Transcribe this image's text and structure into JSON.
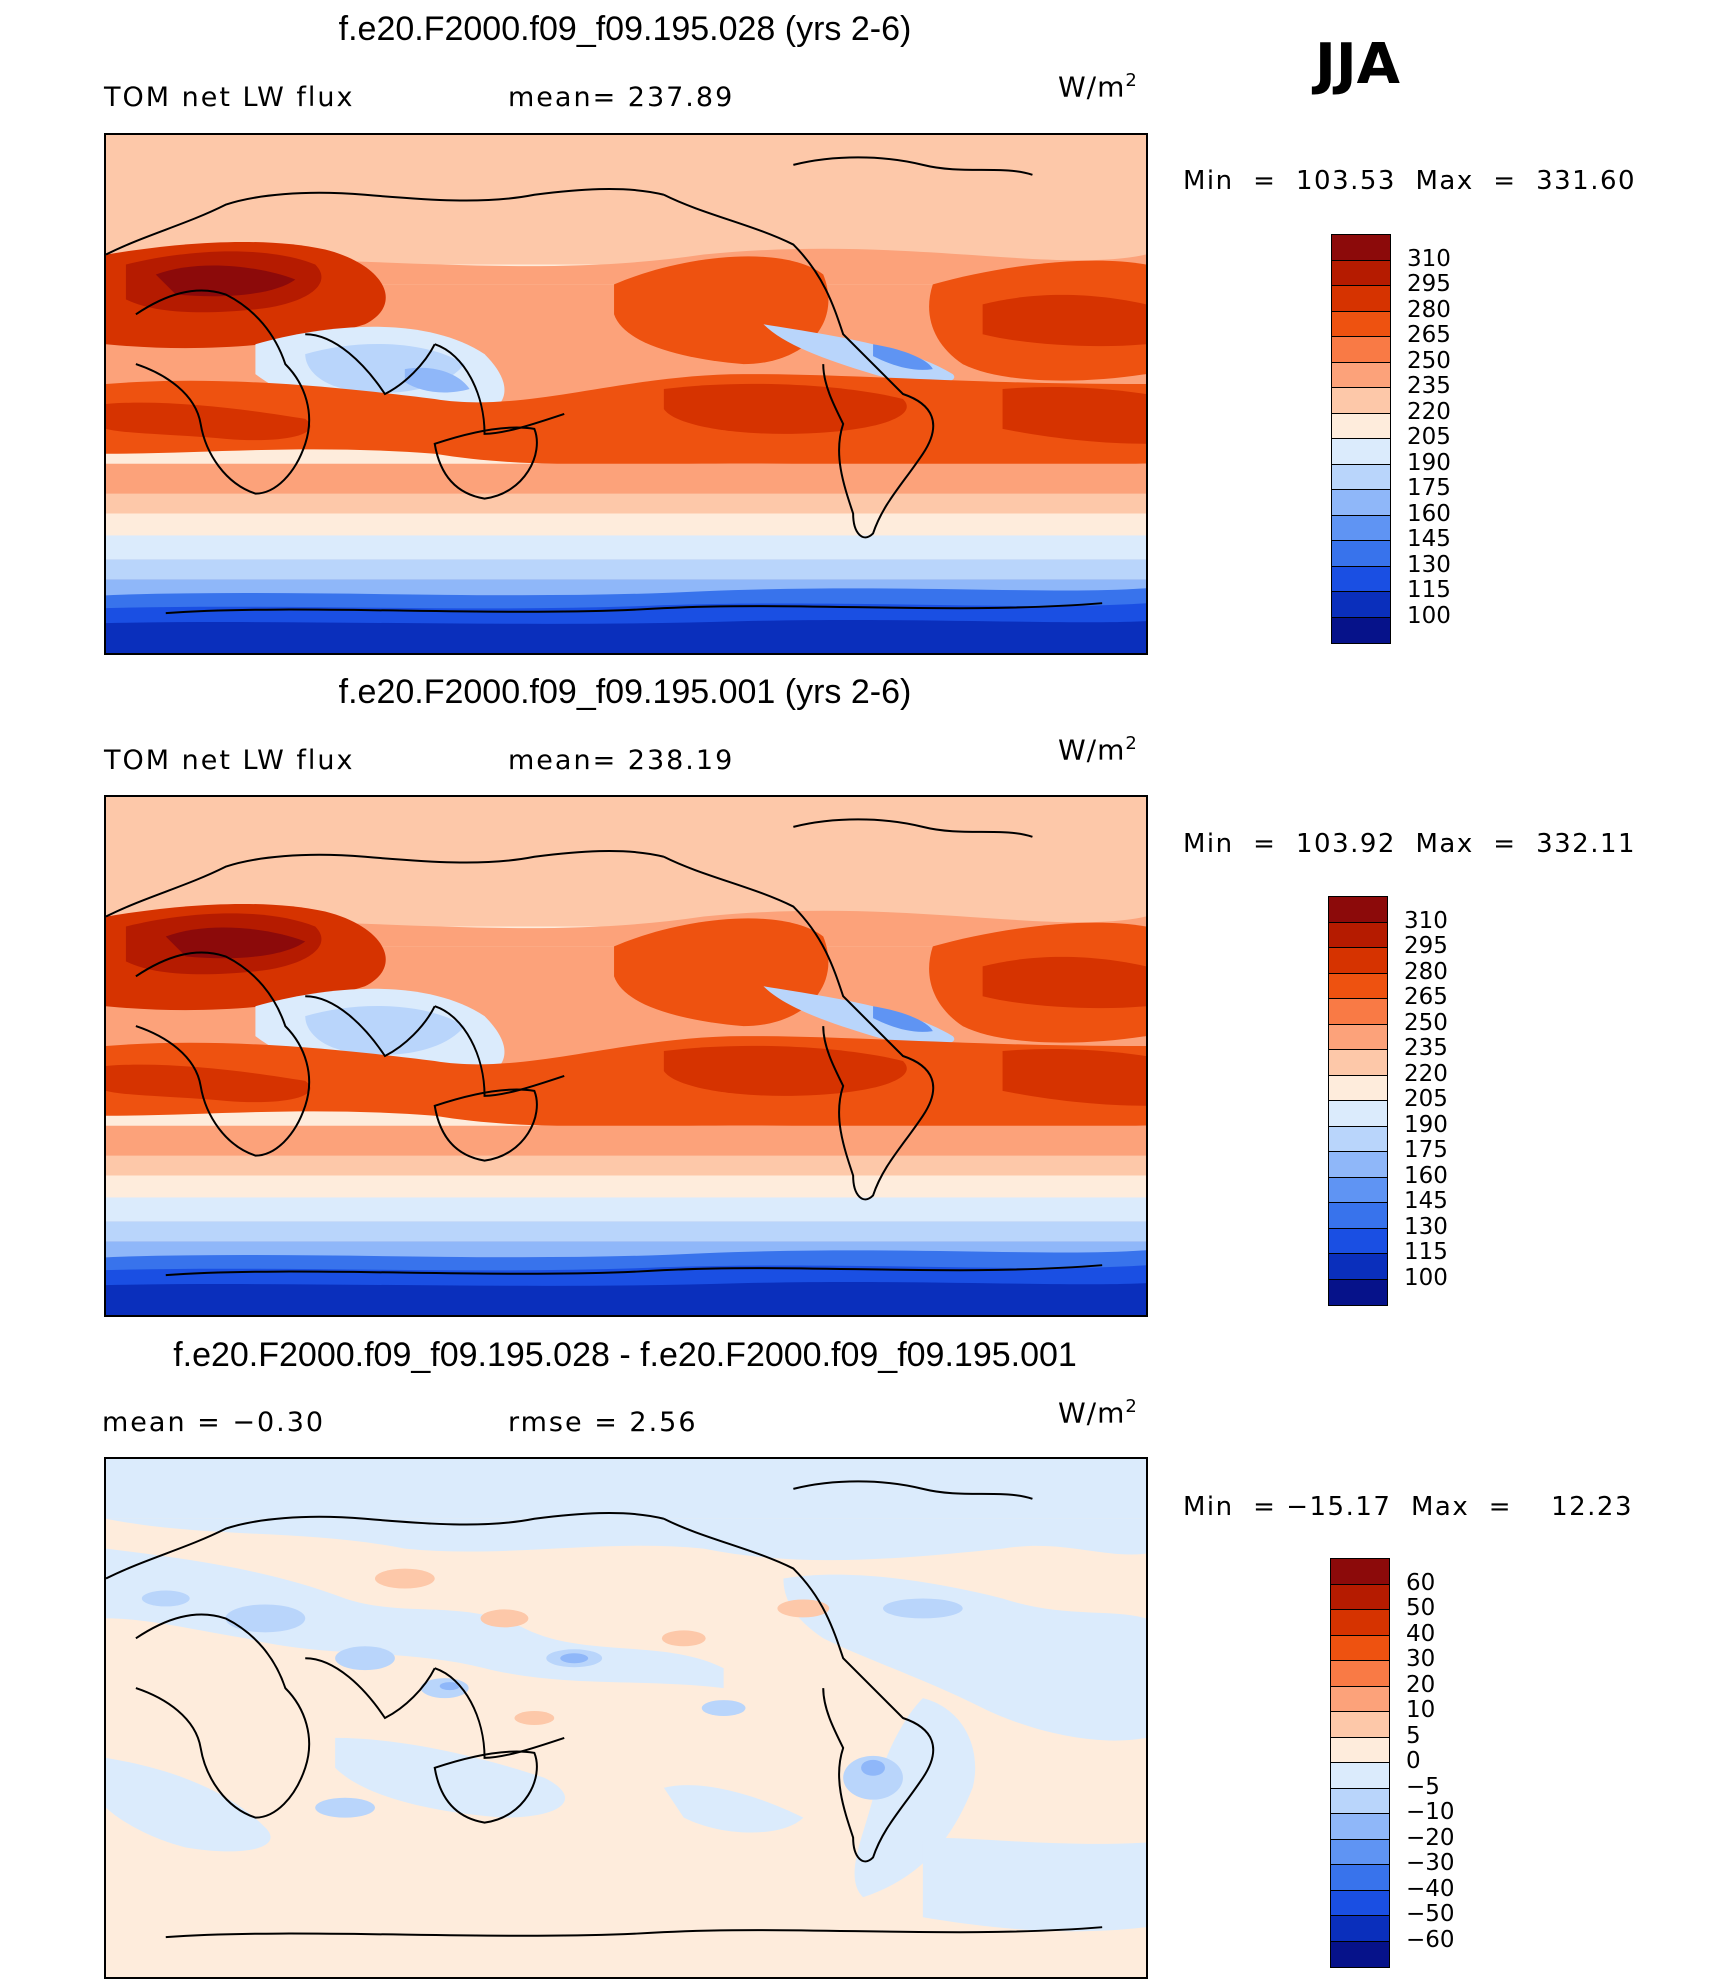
{
  "season": "JJA",
  "panels": [
    {
      "title": "f.e20.F2000.f09_f09.195.028 (yrs 2-6)",
      "left_label": "TOM net LW flux",
      "center_label": "mean= 237.89",
      "units": "W/m",
      "units_exp": "2",
      "minmax": "Min  =  103.53  Max  =  331.60",
      "colorbar_labels": [
        "310",
        "295",
        "280",
        "265",
        "250",
        "235",
        "220",
        "205",
        "190",
        "175",
        "160",
        "145",
        "130",
        "115",
        "100"
      ],
      "colorbar_colors": [
        "#8c0a0a",
        "#b51b00",
        "#d63300",
        "#ee5210",
        "#f97a45",
        "#fca27a",
        "#fdc8a9",
        "#feecdc",
        "#dbebfc",
        "#b9d5fb",
        "#8fb7f9",
        "#5f94f3",
        "#3873ec",
        "#1a4fe3",
        "#0a2fbc",
        "#06128a"
      ]
    },
    {
      "title": "f.e20.F2000.f09_f09.195.001 (yrs 2-6)",
      "left_label": "TOM net LW flux",
      "center_label": "mean= 238.19",
      "units": "W/m",
      "units_exp": "2",
      "minmax": "Min  =  103.92  Max  =  332.11",
      "colorbar_labels": [
        "310",
        "295",
        "280",
        "265",
        "250",
        "235",
        "220",
        "205",
        "190",
        "175",
        "160",
        "145",
        "130",
        "115",
        "100"
      ],
      "colorbar_colors": [
        "#8c0a0a",
        "#b51b00",
        "#d63300",
        "#ee5210",
        "#f97a45",
        "#fca27a",
        "#fdc8a9",
        "#feecdc",
        "#dbebfc",
        "#b9d5fb",
        "#8fb7f9",
        "#5f94f3",
        "#3873ec",
        "#1a4fe3",
        "#0a2fbc",
        "#06128a"
      ]
    },
    {
      "title": "f.e20.F2000.f09_f09.195.028 - f.e20.F2000.f09_f09.195.001",
      "left_label": "mean =    −0.30",
      "center_label": "rmse =     2.56",
      "units": "W/m",
      "units_exp": "2",
      "minmax": "Min  = −15.17  Max  =    12.23",
      "colorbar_labels": [
        "60",
        "50",
        "40",
        "30",
        "20",
        "10",
        "5",
        "0",
        "−5",
        "−10",
        "−20",
        "−30",
        "−40",
        "−50",
        "−60"
      ],
      "colorbar_colors": [
        "#8c0a0a",
        "#b51b00",
        "#d63300",
        "#ee5210",
        "#f97a45",
        "#fca27a",
        "#fdc8a9",
        "#feecdc",
        "#dbebfc",
        "#b9d5fb",
        "#8fb7f9",
        "#5f94f3",
        "#3873ec",
        "#1a4fe3",
        "#0a2fbc",
        "#06128a"
      ]
    }
  ]
}
